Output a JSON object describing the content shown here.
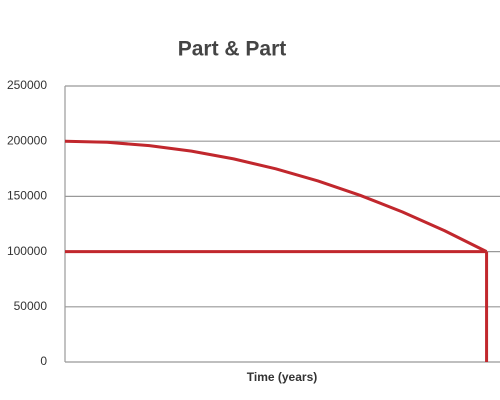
{
  "chart_data": {
    "type": "line",
    "title": "Part & Part",
    "x_label": "Time (years)",
    "x": [
      0,
      1,
      2,
      3,
      4,
      5,
      6,
      7,
      8,
      9,
      10
    ],
    "xlim": [
      0,
      10.2
    ],
    "ylim": [
      0,
      250000
    ],
    "yticks": [
      0,
      50000,
      100000,
      150000,
      200000,
      250000
    ],
    "grid": true,
    "series": [
      {
        "color": "#c1272d",
        "values": [
          200000,
          199000,
          196000,
          191000,
          184000,
          175000,
          164000,
          151000,
          136000,
          119000,
          100000
        ]
      },
      {
        "color": "#c1272d",
        "values": [
          100000,
          100000,
          100000,
          100000,
          100000,
          100000,
          100000,
          100000,
          100000,
          100000,
          100000
        ]
      },
      {
        "color": "#c1272d",
        "x": [
          10,
          10
        ],
        "values": [
          100000,
          0
        ]
      }
    ]
  }
}
